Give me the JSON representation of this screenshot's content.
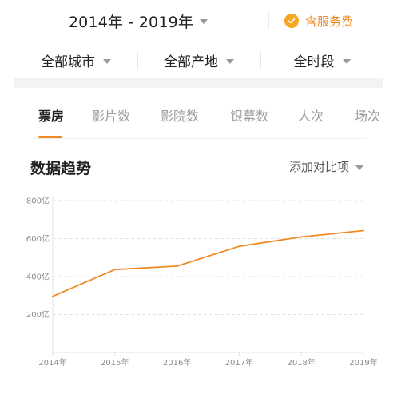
{
  "header": {
    "date_range": "2014年 - 2019年",
    "service_label": "含服务费"
  },
  "filters": [
    {
      "label": "全部城市"
    },
    {
      "label": "全部产地"
    },
    {
      "label": "全时段"
    }
  ],
  "tabs": [
    {
      "label": "票房",
      "active": true
    },
    {
      "label": "影片数",
      "active": false
    },
    {
      "label": "影院数",
      "active": false
    },
    {
      "label": "银幕数",
      "active": false
    },
    {
      "label": "人次",
      "active": false
    },
    {
      "label": "场次",
      "active": false
    }
  ],
  "section": {
    "title": "数据趋势",
    "compare_label": "添加对比项"
  },
  "colors": {
    "accent": "#f08a24",
    "line": "#f08a24"
  },
  "icons": {
    "service": "check-circle-icon",
    "dropdown": "caret-down-icon"
  },
  "chart_data": {
    "type": "line",
    "x": [
      "2014年",
      "2015年",
      "2016年",
      "2017年",
      "2018年",
      "2019年"
    ],
    "series": [
      {
        "values": [
          296,
          437,
          455,
          559,
          609,
          642
        ]
      }
    ],
    "ylim": [
      0,
      800
    ],
    "yticks": [
      200,
      400,
      600,
      800
    ],
    "ytick_labels": [
      "200亿",
      "400亿",
      "600亿",
      "800亿"
    ],
    "grid": true
  }
}
